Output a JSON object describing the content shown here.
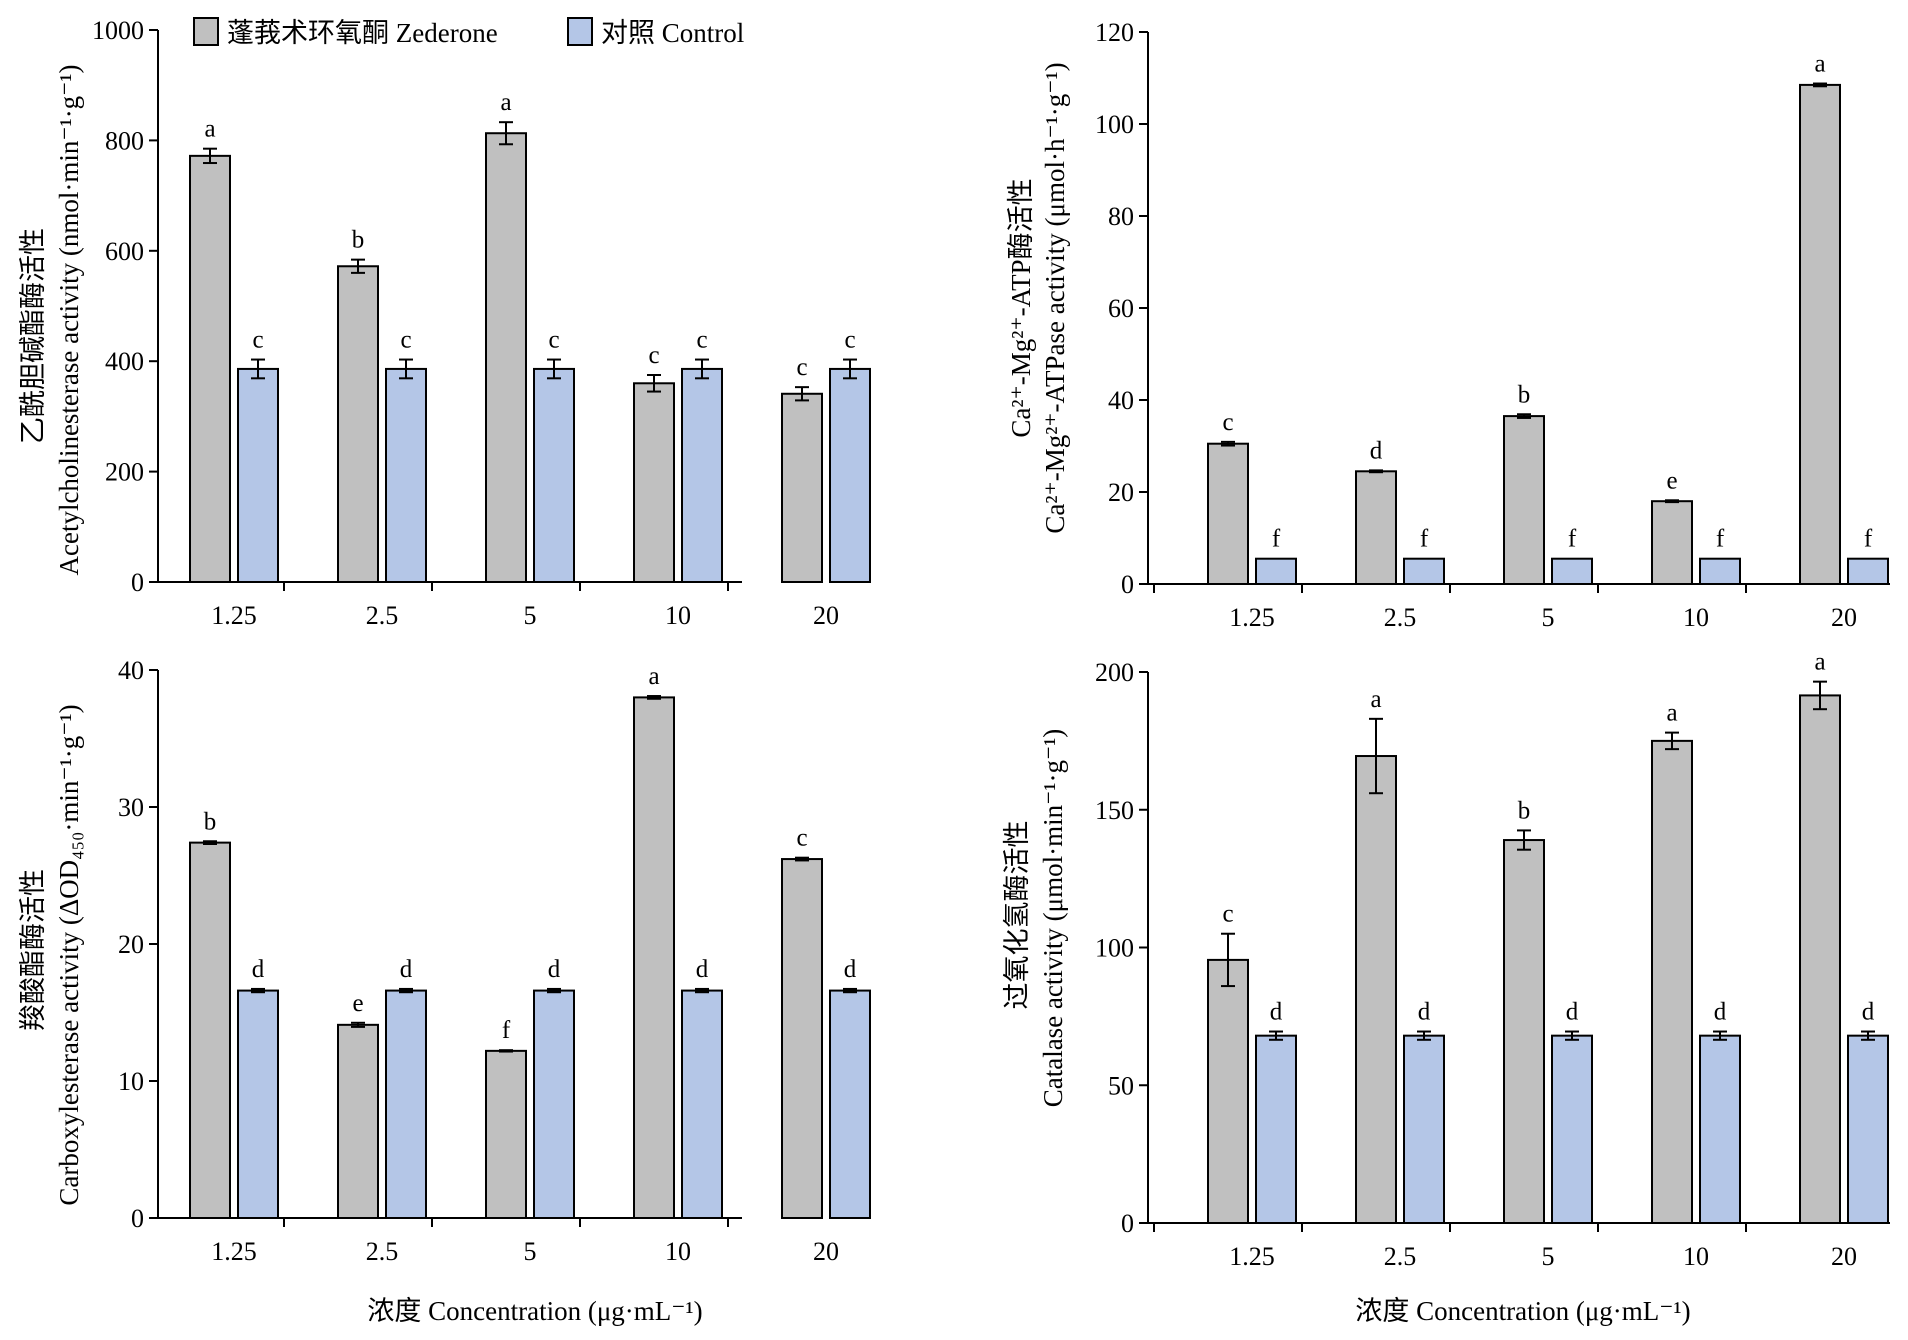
{
  "colors": {
    "zederone": "#c0c0c0",
    "control": "#b4c6e7",
    "axis": "#000000"
  },
  "legend": {
    "zederone": "蓬莪术环氧酮 Zederone",
    "control": "对照 Control"
  },
  "chart_data": [
    {
      "type": "bar",
      "panel": "top-left",
      "categories": [
        "1.25",
        "2.5",
        "5",
        "10",
        "20"
      ],
      "ylim": [
        0,
        1000
      ],
      "yticks": [
        "0",
        "200",
        "400",
        "600",
        "800",
        "1000"
      ],
      "ylabel_cn": "乙酰胆碱酯酶活性",
      "ylabel_en": "Acetylcholinesterase activity (nmol·min⁻¹·g⁻¹)",
      "xlabel": "",
      "series": [
        {
          "name": "蓬莪术环氧酮 Zederone",
          "values": [
            772,
            572,
            813,
            360,
            341
          ],
          "errors": [
            13,
            12,
            20,
            15,
            12
          ],
          "letters": [
            "a",
            "b",
            "a",
            "c",
            "c"
          ]
        },
        {
          "name": "对照 Control",
          "values": [
            386,
            386,
            386,
            386,
            386
          ],
          "errors": [
            17,
            17,
            17,
            17,
            17
          ],
          "letters": [
            "c",
            "c",
            "c",
            "c",
            "c"
          ]
        }
      ]
    },
    {
      "type": "bar",
      "panel": "top-right",
      "categories": [
        "1.25",
        "2.5",
        "5",
        "10",
        "20"
      ],
      "ylim": [
        0,
        120
      ],
      "yticks": [
        "0",
        "20",
        "40",
        "60",
        "80",
        "100",
        "120"
      ],
      "ylabel_cn": "Ca²⁺-Mg²⁺-ATP酶活性",
      "ylabel_en": "Ca²⁺-Mg²⁺-ATPase activity (μmol·h⁻¹·g⁻¹)",
      "xlabel": "",
      "series": [
        {
          "name": "蓬莪术环氧酮 Zederone",
          "values": [
            30.5,
            24.5,
            36.5,
            18,
            108.5
          ],
          "errors": [
            0.4,
            0.2,
            0.4,
            0.2,
            0.3
          ],
          "letters": [
            "c",
            "d",
            "b",
            "e",
            "a"
          ]
        },
        {
          "name": "对照 Control",
          "values": [
            5.5,
            5.5,
            5.5,
            5.5,
            5.5
          ],
          "errors": [
            0,
            0,
            0,
            0,
            0
          ],
          "letters": [
            "f",
            "f",
            "f",
            "f",
            "f"
          ]
        }
      ]
    },
    {
      "type": "bar",
      "panel": "bottom-left",
      "categories": [
        "1.25",
        "2.5",
        "5",
        "10",
        "20"
      ],
      "ylim": [
        0,
        40
      ],
      "yticks": [
        "0",
        "10",
        "20",
        "30",
        "40"
      ],
      "ylabel_cn": "羧酸酯酶活性",
      "ylabel_en": "Carboxylesterase activity (ΔOD₄₅₀·min⁻¹·g⁻¹)",
      "xlabel": "浓度 Concentration (μg·mL⁻¹)",
      "series": [
        {
          "name": "蓬莪术环氧酮 Zederone",
          "values": [
            27.4,
            14.1,
            12.2,
            38,
            26.2
          ],
          "errors": [
            0.1,
            0.15,
            0.05,
            0.1,
            0.1
          ],
          "letters": [
            "b",
            "e",
            "f",
            "a",
            "c"
          ]
        },
        {
          "name": "对照 Control",
          "values": [
            16.6,
            16.6,
            16.6,
            16.6,
            16.6
          ],
          "errors": [
            0.12,
            0.12,
            0.12,
            0.12,
            0.12
          ],
          "letters": [
            "d",
            "d",
            "d",
            "d",
            "d"
          ]
        }
      ]
    },
    {
      "type": "bar",
      "panel": "bottom-right",
      "categories": [
        "1.25",
        "2.5",
        "5",
        "10",
        "20"
      ],
      "ylim": [
        0,
        200
      ],
      "yticks": [
        "0",
        "50",
        "100",
        "150",
        "200"
      ],
      "ylabel_cn": "过氧化氢酶活性",
      "ylabel_en": "Catalase activity (μmol·min⁻¹·g⁻¹)",
      "xlabel": "浓度 Concentration (μg·mL⁻¹)",
      "series": [
        {
          "name": "蓬莪术环氧酮 Zederone",
          "values": [
            95.5,
            169.5,
            139,
            175,
            191.5
          ],
          "errors": [
            9.5,
            13.5,
            3.5,
            3,
            5
          ],
          "letters": [
            "c",
            "a",
            "b",
            "a",
            "a"
          ]
        },
        {
          "name": "对照 Control",
          "values": [
            68,
            68,
            68,
            68,
            68
          ],
          "errors": [
            1.5,
            1.5,
            1.5,
            1.5,
            1.5
          ],
          "letters": [
            "d",
            "d",
            "d",
            "d",
            "d"
          ]
        }
      ]
    }
  ]
}
